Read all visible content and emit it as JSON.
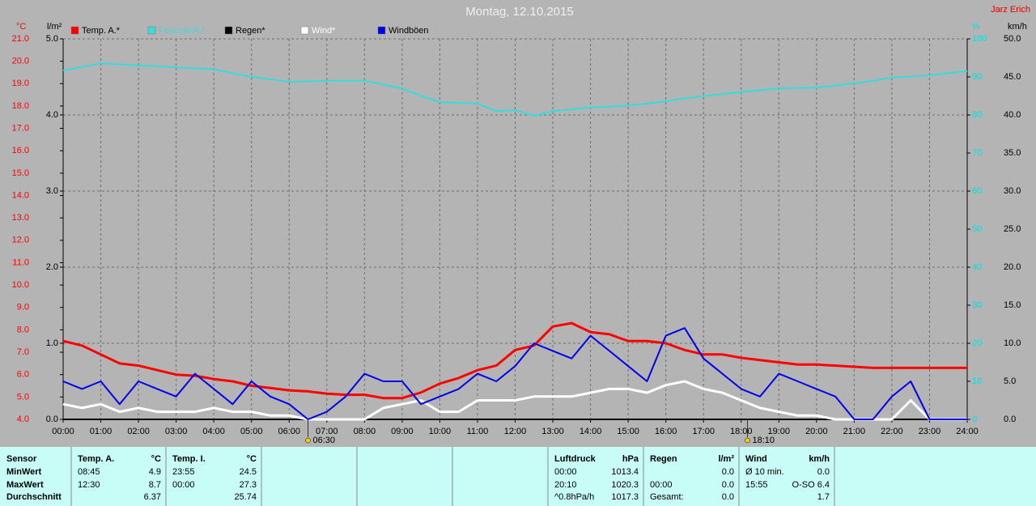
{
  "chart_data": {
    "type": "line",
    "title": "Montag, 12.10.2015",
    "author": "Jarz Erich",
    "x": [
      0,
      0.5,
      1,
      1.5,
      2,
      2.5,
      3,
      3.5,
      4,
      4.5,
      5,
      5.5,
      6,
      6.5,
      7,
      7.5,
      8,
      8.5,
      9,
      9.5,
      10,
      10.5,
      11,
      11.5,
      12,
      12.5,
      13,
      13.5,
      14,
      14.5,
      15,
      15.5,
      16,
      16.5,
      17,
      17.5,
      18,
      18.5,
      19,
      19.5,
      20,
      20.5,
      21,
      21.5,
      22,
      22.5,
      23,
      23.5,
      24
    ],
    "xlim": [
      0,
      24
    ],
    "xticks": [
      {
        "value": 0,
        "label": "00:00"
      },
      {
        "value": 1,
        "label": "01:00"
      },
      {
        "value": 2,
        "label": "02:00"
      },
      {
        "value": 3,
        "label": "03:00"
      },
      {
        "value": 4,
        "label": "04:00"
      },
      {
        "value": 5,
        "label": "05:00"
      },
      {
        "value": 6,
        "label": "06:00"
      },
      {
        "value": 7,
        "label": "07:00"
      },
      {
        "value": 8,
        "label": "08:00"
      },
      {
        "value": 9,
        "label": "09:00"
      },
      {
        "value": 10,
        "label": "10:00"
      },
      {
        "value": 11,
        "label": "11:00"
      },
      {
        "value": 12,
        "label": "12:00"
      },
      {
        "value": 13,
        "label": "13:00"
      },
      {
        "value": 14,
        "label": "14:00"
      },
      {
        "value": 15,
        "label": "15:00"
      },
      {
        "value": 16,
        "label": "16:00"
      },
      {
        "value": 17,
        "label": "17:00"
      },
      {
        "value": 18,
        "label": "18:00"
      },
      {
        "value": 19,
        "label": "19:00"
      },
      {
        "value": 20,
        "label": "20:00"
      },
      {
        "value": 21,
        "label": "21:00"
      },
      {
        "value": 22,
        "label": "22:00"
      },
      {
        "value": 23,
        "label": "23:00"
      },
      {
        "value": 24,
        "label": "24:00"
      }
    ],
    "grid": true,
    "axes": {
      "temp": {
        "unit": "°C",
        "color": "#ff0000",
        "side": "left-outer",
        "lim": [
          4,
          21
        ],
        "ticks": [
          {
            "value": 4,
            "label": "4.0"
          },
          {
            "value": 5,
            "label": "5.0"
          },
          {
            "value": 6,
            "label": "6.0"
          },
          {
            "value": 7,
            "label": "7.0"
          },
          {
            "value": 8,
            "label": "8.0"
          },
          {
            "value": 9,
            "label": "9.0"
          },
          {
            "value": 10,
            "label": "10.0"
          },
          {
            "value": 11,
            "label": "11.0"
          },
          {
            "value": 12,
            "label": "12.0"
          },
          {
            "value": 13,
            "label": "13.0"
          },
          {
            "value": 14,
            "label": "14.0"
          },
          {
            "value": 15,
            "label": "15.0"
          },
          {
            "value": 16,
            "label": "16.0"
          },
          {
            "value": 17,
            "label": "17.0"
          },
          {
            "value": 18,
            "label": "18.0"
          },
          {
            "value": 19,
            "label": "19.0"
          },
          {
            "value": 20,
            "label": "20.0"
          },
          {
            "value": 21,
            "label": "21.0"
          }
        ]
      },
      "rain": {
        "unit": "l/m²",
        "color": "#000000",
        "side": "left-inner",
        "lim": [
          0,
          5
        ],
        "ticks": [
          {
            "value": 0,
            "label": "0.0"
          },
          {
            "value": 1,
            "label": "1.0"
          },
          {
            "value": 2,
            "label": "2.0"
          },
          {
            "value": 3,
            "label": "3.0"
          },
          {
            "value": 4,
            "label": "4.0"
          },
          {
            "value": 5,
            "label": "5.0"
          }
        ]
      },
      "humidity": {
        "unit": "%",
        "color": "#00e0e0",
        "side": "right-inner",
        "lim": [
          0,
          100
        ],
        "ticks": [
          0,
          10,
          20,
          30,
          40,
          50,
          60,
          70,
          80,
          90,
          100
        ]
      },
      "wind": {
        "unit": "km/h",
        "color": "#000000",
        "side": "right-outer",
        "lim": [
          0,
          50
        ],
        "ticks": [
          {
            "value": 0,
            "label": "0.0"
          },
          {
            "value": 5,
            "label": "5.0"
          },
          {
            "value": 10,
            "label": "10.0"
          },
          {
            "value": 15,
            "label": "15.0"
          },
          {
            "value": 20,
            "label": "20.0"
          },
          {
            "value": 25,
            "label": "25.0"
          },
          {
            "value": 30,
            "label": "30.0"
          },
          {
            "value": 35,
            "label": "35.0"
          },
          {
            "value": 40,
            "label": "40.0"
          },
          {
            "value": 45,
            "label": "45.0"
          },
          {
            "value": 50,
            "label": "50.0"
          }
        ]
      }
    },
    "series": [
      {
        "name": "Temp. A.*",
        "color": "#ff0000",
        "axis": "temp",
        "values": [
          7.5,
          7.3,
          6.9,
          6.5,
          6.4,
          6.2,
          6.0,
          5.95,
          5.8,
          5.7,
          5.5,
          5.4,
          5.3,
          5.25,
          5.15,
          5.1,
          5.1,
          4.95,
          4.95,
          5.2,
          5.6,
          5.85,
          6.2,
          6.4,
          7.1,
          7.3,
          8.15,
          8.3,
          7.9,
          7.8,
          7.5,
          7.5,
          7.4,
          7.1,
          6.9,
          6.9,
          6.75,
          6.65,
          6.55,
          6.45,
          6.45,
          6.4,
          6.35,
          6.3,
          6.3,
          6.3,
          6.3,
          6.3,
          6.3
        ]
      },
      {
        "name": "Feuchte A.*",
        "color": "#33dddd",
        "axis": "humidity",
        "values": [
          91.7,
          92.6,
          93.6,
          93.3,
          93,
          92.8,
          92.5,
          92.3,
          92,
          91,
          90,
          89.4,
          88.7,
          88.8,
          89,
          89,
          89,
          88,
          87,
          85,
          83.4,
          83.2,
          83,
          81,
          81.3,
          79.8,
          81,
          81.5,
          82,
          82.2,
          82.5,
          83,
          83.6,
          84.3,
          85,
          85.5,
          86,
          86.5,
          87,
          87.1,
          87.2,
          87.7,
          88.3,
          89,
          89.8,
          90.1,
          90.4,
          91,
          91.5
        ]
      },
      {
        "name": "Regen*",
        "color": "#000000",
        "axis": "rain",
        "values": [
          0,
          0,
          0,
          0,
          0,
          0,
          0,
          0,
          0,
          0,
          0,
          0,
          0,
          0,
          0,
          0,
          0,
          0,
          0,
          0,
          0,
          0,
          0,
          0,
          0,
          0,
          0,
          0,
          0,
          0,
          0,
          0,
          0,
          0,
          0,
          0,
          0,
          0,
          0,
          0,
          0,
          0,
          0,
          0,
          0,
          0,
          0,
          0,
          0
        ]
      },
      {
        "name": "Wind*",
        "color": "#ffffff",
        "axis": "wind",
        "values": [
          2,
          1.5,
          2,
          1,
          1.5,
          1,
          1,
          1,
          1.5,
          1,
          1,
          0.5,
          0.5,
          0,
          0,
          0,
          0,
          1.5,
          2,
          2.5,
          1,
          1,
          2.5,
          2.5,
          2.5,
          3,
          3,
          3,
          3.5,
          4,
          4,
          3.5,
          4.5,
          5,
          4,
          3.5,
          2.5,
          1.5,
          1,
          0.5,
          0.5,
          0,
          0,
          0,
          0,
          2.5,
          0,
          0,
          0
        ]
      },
      {
        "name": "Windböen",
        "color": "#0000ee",
        "axis": "wind",
        "values": [
          5,
          4,
          5,
          2,
          5,
          4,
          3,
          6,
          4,
          2,
          5,
          3,
          2,
          0,
          1,
          3,
          6,
          5,
          5,
          2,
          3,
          4,
          6,
          5,
          7,
          10,
          9,
          8,
          11,
          9,
          7,
          5,
          11,
          12,
          8,
          6,
          4,
          3,
          6,
          5,
          4,
          3,
          0,
          0,
          3,
          5,
          0,
          0,
          0
        ]
      }
    ],
    "annotations": [
      {
        "x": 6.5,
        "label": "06:30"
      },
      {
        "x": 18.1667,
        "label": "18:10"
      }
    ]
  },
  "table": {
    "row_labels": [
      "Sensor",
      "MinWert",
      "MaxWert",
      "Durchschnitt"
    ],
    "groups": [
      {
        "header": "Temp. A.",
        "unit": "°C",
        "rows": [
          [
            "08:45",
            "4.9"
          ],
          [
            "12:30",
            "8.7"
          ],
          [
            null,
            "6.37"
          ]
        ]
      },
      {
        "header": "Temp. I.",
        "unit": "°C",
        "rows": [
          [
            "23:55",
            "24.5"
          ],
          [
            "00:00",
            "27.3"
          ],
          [
            null,
            "25.74"
          ]
        ]
      },
      {
        "header": "Luftdruck",
        "unit": "hPa",
        "rows": [
          [
            "00:00",
            "1013.4"
          ],
          [
            "20:10",
            "1020.3"
          ],
          [
            "^0.8hPa/h",
            "1017.3"
          ]
        ]
      },
      {
        "header": "Regen",
        "unit": "l/m²",
        "rows": [
          [
            null,
            "0.0"
          ],
          [
            "00:00",
            "0.0"
          ],
          [
            "Gesamt:",
            "0.0"
          ]
        ]
      },
      {
        "header": "Wind",
        "unit": "km/h",
        "rows": [
          [
            "Ø 10 min.",
            "0.0"
          ],
          [
            "15:55",
            "O-SO 6.4"
          ],
          [
            null,
            "1.7"
          ]
        ]
      }
    ]
  }
}
